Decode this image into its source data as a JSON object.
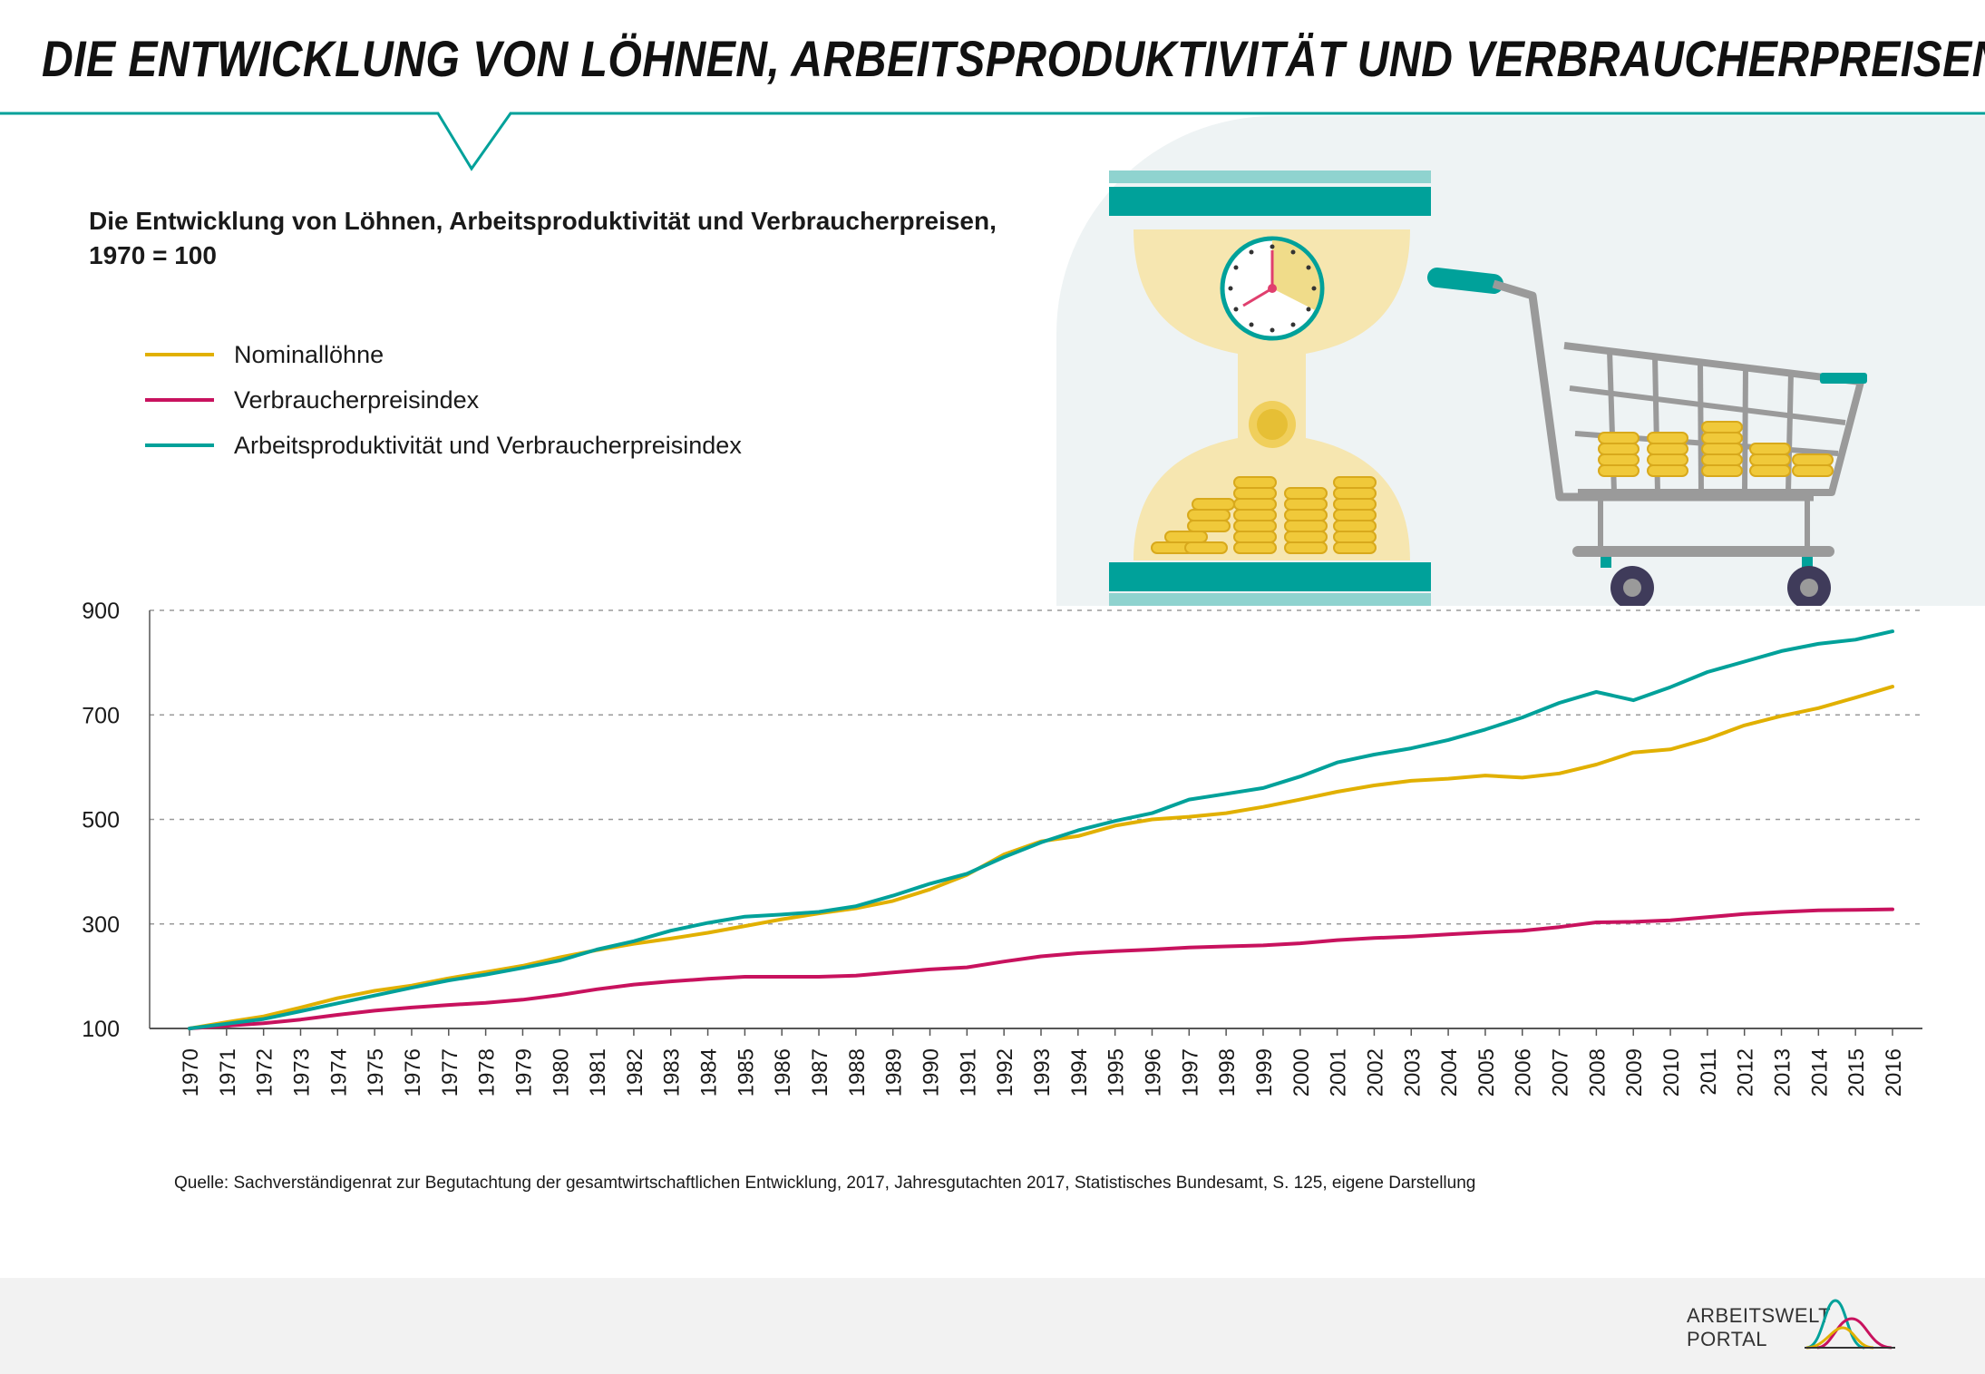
{
  "header": {
    "title": "DIE ENTWICKLUNG VON LÖHNEN, ARBEITSPRODUKTIVITÄT UND VERBRAUCHERPREISEN"
  },
  "subtitle_line1": "Die Entwicklung von Löhnen, Arbeitsproduktivität und Verbraucherpreisen,",
  "subtitle_line2": "1970 = 100",
  "source": "Quelle: Sachverständigenrat zur Begutachtung der gesamtwirtschaftlichen Entwicklung, 2017, Jahresgutachten 2017, Statistisches Bundesamt, S. 125, eigene Darstellung",
  "logo": {
    "line1": "ARBEITSWELT",
    "line2": "PORTAL"
  },
  "colors": {
    "accent_teal": "#00a19a",
    "gold": "#e1b000",
    "magenta": "#c8125e",
    "grid": "#9a9a9a"
  },
  "chart_data": {
    "type": "line",
    "title": "Die Entwicklung von Löhnen, Arbeitsproduktivität und Verbraucherpreisen, 1970 = 100",
    "legend_position": "top-left",
    "grid": true,
    "ylim": [
      100,
      900
    ],
    "yticks": [
      100,
      300,
      500,
      700,
      900
    ],
    "x": [
      "1970",
      "1971",
      "1972",
      "1973",
      "1974",
      "1975",
      "1976",
      "1977",
      "1978",
      "1979",
      "1980",
      "1981",
      "1982",
      "1983",
      "1984",
      "1985",
      "1986",
      "1987",
      "1988",
      "1989",
      "1990",
      "1991",
      "1992",
      "1993",
      "1994",
      "1995",
      "1996",
      "1997",
      "1998",
      "1999",
      "2000",
      "2001",
      "2002",
      "2003",
      "2004",
      "2005",
      "2006",
      "2007",
      "2008",
      "2009",
      "2010",
      "2011",
      "2012",
      "2013",
      "2014",
      "2015",
      "2016"
    ],
    "series": [
      {
        "name": "Nominallöhne",
        "color": "#e1b000",
        "values": [
          100,
          112,
          123,
          140,
          158,
          172,
          182,
          196,
          208,
          220,
          236,
          250,
          262,
          272,
          283,
          296,
          309,
          320,
          330,
          344,
          366,
          394,
          433,
          458,
          468,
          488,
          500,
          505,
          512,
          524,
          538,
          553,
          565,
          574,
          578,
          584,
          580,
          588,
          605,
          628,
          634,
          654,
          680,
          698,
          713,
          733,
          754
        ]
      },
      {
        "name": "Verbraucherpreisindex",
        "color": "#c8125e",
        "values": [
          100,
          105,
          110,
          117,
          126,
          134,
          140,
          145,
          149,
          155,
          164,
          175,
          184,
          190,
          195,
          199,
          199,
          199,
          201,
          207,
          213,
          217,
          228,
          238,
          244,
          248,
          251,
          255,
          257,
          259,
          263,
          269,
          273,
          276,
          280,
          284,
          287,
          294,
          303,
          304,
          307,
          313,
          319,
          323,
          326,
          327,
          328
        ]
      },
      {
        "name": "Arbeitsproduktivität und Verbraucherpreisindex",
        "color": "#00a19a",
        "values": [
          100,
          109,
          118,
          133,
          148,
          163,
          178,
          192,
          203,
          216,
          230,
          251,
          267,
          287,
          302,
          314,
          318,
          323,
          334,
          354,
          377,
          396,
          428,
          456,
          479,
          497,
          512,
          538,
          549,
          560,
          582,
          609,
          624,
          636,
          652,
          672,
          695,
          723,
          744,
          728,
          753,
          782,
          802,
          822,
          836,
          844,
          860
        ]
      }
    ]
  }
}
